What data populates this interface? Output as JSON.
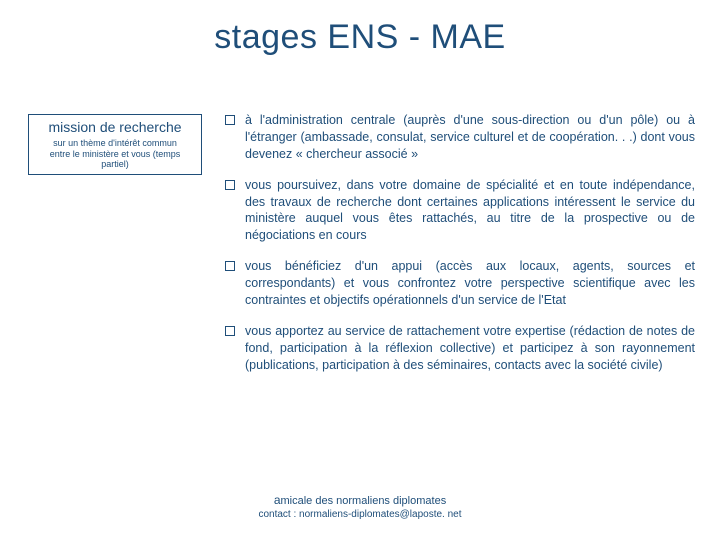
{
  "colors": {
    "text": "#1f4e79",
    "background": "#ffffff",
    "border": "#1f4e79"
  },
  "title": "stages ENS - MAE",
  "title_fontsize": 34,
  "sidebar": {
    "heading": "mission de recherche",
    "sub1": "sur un thème d'intérêt commun",
    "sub2": "entre le ministère et vous (temps partiel)",
    "heading_fontsize": 14,
    "sub_fontsize": 9
  },
  "bullets": [
    "à l'administration centrale (auprès d'une sous-direction ou d'un pôle) ou à l'étranger (ambassade, consulat, service culturel et de coopération. . .) dont vous devenez « chercheur associé »",
    "vous poursuivez, dans votre domaine de spécialité et en toute indépendance, des travaux de recherche dont certaines applications intéressent le service du ministère auquel vous êtes rattachés, au titre de la prospective ou de négociations en cours",
    "vous bénéficiez d'un appui (accès aux locaux, agents, sources et correspondants) et vous confrontez votre perspective scientifique avec les contraintes et objectifs opérationnels d'un service de l'Etat",
    "vous apportez au service de rattachement votre expertise (rédaction de notes de fond, participation à la réflexion collective) et participez à son rayonnement (publications, participation à des séminaires, contacts avec la société civile)"
  ],
  "bullet_fontsize": 12.5,
  "bullet_marker_size": 10,
  "footer": {
    "line1_prefix_a": "a",
    "line1_rest": "micale des normaliens diplomates",
    "line2": "contact : normaliens-diplomates@laposte. net",
    "line1_fontsize": 11,
    "line2_fontsize": 10
  }
}
